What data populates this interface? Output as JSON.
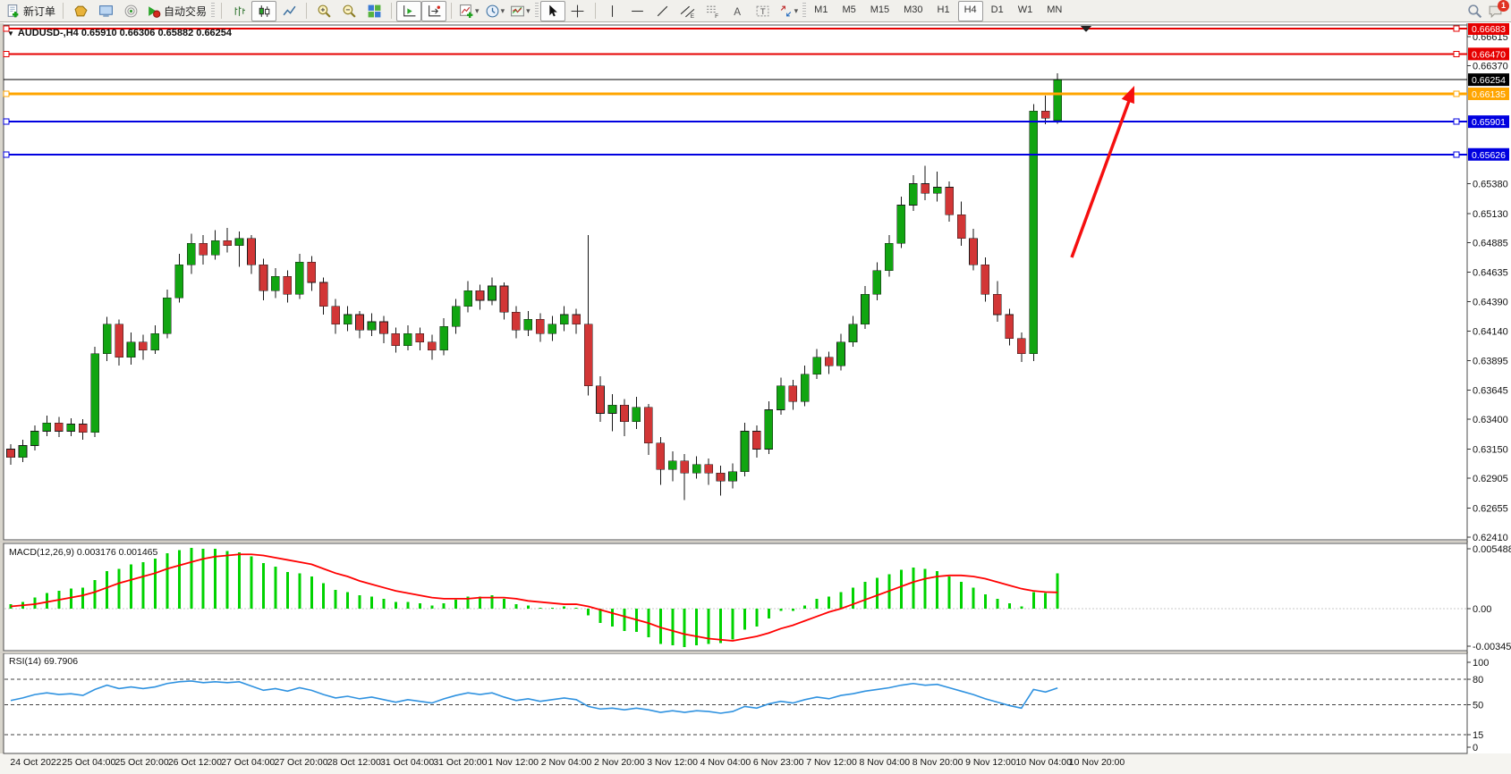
{
  "toolbar": {
    "new_order_label": "新订单",
    "auto_trading_label": "自动交易",
    "timeframes": [
      "M1",
      "M5",
      "M15",
      "M30",
      "H1",
      "H4",
      "D1",
      "W1",
      "MN"
    ],
    "active_timeframe": "H4",
    "notification_count": "1"
  },
  "chart": {
    "title": "AUDUSD-,H4  0.65910 0.66306 0.65882 0.66254",
    "symbol": "AUDUSD-",
    "period": "H4",
    "ohlc_header": {
      "open": "0.65910",
      "high": "0.66306",
      "low": "0.65882",
      "close": "0.66254"
    }
  },
  "colors": {
    "candle_up": "#11a511",
    "candle_down": "#d23636",
    "wick": "#151515",
    "line_red": "#e60000",
    "line_orange": "#ffa500",
    "line_blue": "#0000e0",
    "current_price_line": "#000000",
    "macd_hist": "#00d300",
    "macd_signal": "#ff0000",
    "rsi_line": "#2f92e0",
    "arrow": "#f50f0f"
  },
  "chart_data": {
    "type": "candlestick",
    "title": "AUDUSD-,H4",
    "ylim": [
      0.6241,
      0.66683
    ],
    "price_ticks": [
      "0.66615",
      "0.66370",
      "0.65380",
      "0.65130",
      "0.64885",
      "0.64635",
      "0.64390",
      "0.64140",
      "0.63895",
      "0.63645",
      "0.63400",
      "0.63150",
      "0.62905",
      "0.62655",
      "0.62410"
    ],
    "current_price": "0.66254",
    "hlines": [
      {
        "price": 0.66683,
        "label": "0.66683",
        "color": "#e60000",
        "width": 2
      },
      {
        "price": 0.6647,
        "label": "0.66470",
        "color": "#e60000",
        "width": 2
      },
      {
        "price": 0.66135,
        "label": "0.66135",
        "color": "#ffa500",
        "width": 3
      },
      {
        "price": 0.65901,
        "label": "0.65901",
        "color": "#0000e0",
        "width": 2
      },
      {
        "price": 0.65626,
        "label": "0.65626",
        "color": "#0000e0",
        "width": 2
      }
    ],
    "time_labels": [
      "24 Oct 2022",
      "25 Oct 04:00",
      "25 Oct 20:00",
      "26 Oct 12:00",
      "27 Oct 04:00",
      "27 Oct 20:00",
      "28 Oct 12:00",
      "31 Oct 04:00",
      "31 Oct 20:00",
      "1 Nov 12:00",
      "2 Nov 04:00",
      "2 Nov 20:00",
      "3 Nov 12:00",
      "4 Nov 04:00",
      "6 Nov 23:00",
      "7 Nov 12:00",
      "8 Nov 04:00",
      "8 Nov 20:00",
      "9 Nov 12:00",
      "10 Nov 04:00",
      "10 Nov 20:00"
    ],
    "ohlc": [
      [
        0.6315,
        0.6319,
        0.6302,
        0.6308
      ],
      [
        0.6308,
        0.6323,
        0.6304,
        0.6318
      ],
      [
        0.6318,
        0.6335,
        0.6314,
        0.633
      ],
      [
        0.633,
        0.6343,
        0.6326,
        0.6337
      ],
      [
        0.6337,
        0.6342,
        0.6325,
        0.633
      ],
      [
        0.633,
        0.6341,
        0.6326,
        0.6336
      ],
      [
        0.6336,
        0.634,
        0.6323,
        0.6329
      ],
      [
        0.6329,
        0.6401,
        0.6325,
        0.6395
      ],
      [
        0.6395,
        0.6426,
        0.6389,
        0.642
      ],
      [
        0.642,
        0.6424,
        0.6385,
        0.6392
      ],
      [
        0.6392,
        0.6413,
        0.6386,
        0.6405
      ],
      [
        0.6405,
        0.6411,
        0.639,
        0.6398
      ],
      [
        0.6398,
        0.6419,
        0.6395,
        0.6412
      ],
      [
        0.6412,
        0.6449,
        0.6408,
        0.6442
      ],
      [
        0.6442,
        0.6479,
        0.6438,
        0.647
      ],
      [
        0.647,
        0.6496,
        0.6462,
        0.6488
      ],
      [
        0.6488,
        0.6495,
        0.647,
        0.6478
      ],
      [
        0.6478,
        0.6499,
        0.6474,
        0.649
      ],
      [
        0.649,
        0.6501,
        0.648,
        0.6486
      ],
      [
        0.6486,
        0.6498,
        0.6468,
        0.6492
      ],
      [
        0.6492,
        0.6495,
        0.6462,
        0.647
      ],
      [
        0.647,
        0.6475,
        0.644,
        0.6448
      ],
      [
        0.6448,
        0.6467,
        0.6442,
        0.646
      ],
      [
        0.646,
        0.6465,
        0.6438,
        0.6445
      ],
      [
        0.6445,
        0.6479,
        0.6441,
        0.6472
      ],
      [
        0.6472,
        0.6477,
        0.6448,
        0.6455
      ],
      [
        0.6455,
        0.6459,
        0.6428,
        0.6435
      ],
      [
        0.6435,
        0.6441,
        0.6412,
        0.642
      ],
      [
        0.642,
        0.6435,
        0.6414,
        0.6428
      ],
      [
        0.6428,
        0.6431,
        0.6408,
        0.6415
      ],
      [
        0.6415,
        0.6429,
        0.641,
        0.6422
      ],
      [
        0.6422,
        0.6427,
        0.6404,
        0.6412
      ],
      [
        0.6412,
        0.6417,
        0.6396,
        0.6402
      ],
      [
        0.6402,
        0.6419,
        0.6398,
        0.6412
      ],
      [
        0.6412,
        0.6417,
        0.6398,
        0.6405
      ],
      [
        0.6405,
        0.6411,
        0.639,
        0.6398
      ],
      [
        0.6398,
        0.6425,
        0.6394,
        0.6418
      ],
      [
        0.6418,
        0.6441,
        0.6412,
        0.6435
      ],
      [
        0.6435,
        0.6456,
        0.643,
        0.6448
      ],
      [
        0.6448,
        0.6453,
        0.6432,
        0.644
      ],
      [
        0.644,
        0.6459,
        0.6436,
        0.6452
      ],
      [
        0.6452,
        0.6455,
        0.6424,
        0.643
      ],
      [
        0.643,
        0.6435,
        0.6408,
        0.6415
      ],
      [
        0.6415,
        0.6431,
        0.641,
        0.6424
      ],
      [
        0.6424,
        0.6429,
        0.6405,
        0.6412
      ],
      [
        0.6412,
        0.6427,
        0.6406,
        0.642
      ],
      [
        0.642,
        0.6435,
        0.6414,
        0.6428
      ],
      [
        0.6428,
        0.6433,
        0.6412,
        0.642
      ],
      [
        0.642,
        0.6495,
        0.636,
        0.6368
      ],
      [
        0.6368,
        0.6376,
        0.6338,
        0.6345
      ],
      [
        0.6345,
        0.6361,
        0.633,
        0.6352
      ],
      [
        0.6352,
        0.6357,
        0.6326,
        0.6338
      ],
      [
        0.6338,
        0.6359,
        0.6332,
        0.635
      ],
      [
        0.635,
        0.6353,
        0.631,
        0.632
      ],
      [
        0.632,
        0.6325,
        0.6285,
        0.6298
      ],
      [
        0.6298,
        0.6313,
        0.6288,
        0.6305
      ],
      [
        0.6305,
        0.6311,
        0.6272,
        0.6295
      ],
      [
        0.6295,
        0.6309,
        0.629,
        0.6302
      ],
      [
        0.6302,
        0.6307,
        0.6285,
        0.6295
      ],
      [
        0.6295,
        0.6301,
        0.6276,
        0.6288
      ],
      [
        0.6288,
        0.6303,
        0.6282,
        0.6296
      ],
      [
        0.6296,
        0.6337,
        0.6292,
        0.633
      ],
      [
        0.633,
        0.6335,
        0.6308,
        0.6315
      ],
      [
        0.6315,
        0.6355,
        0.6311,
        0.6348
      ],
      [
        0.6348,
        0.6375,
        0.6344,
        0.6368
      ],
      [
        0.6368,
        0.6373,
        0.6348,
        0.6355
      ],
      [
        0.6355,
        0.6385,
        0.6351,
        0.6378
      ],
      [
        0.6378,
        0.6399,
        0.6374,
        0.6392
      ],
      [
        0.6392,
        0.6397,
        0.6378,
        0.6385
      ],
      [
        0.6385,
        0.6412,
        0.6381,
        0.6405
      ],
      [
        0.6405,
        0.6427,
        0.6401,
        0.642
      ],
      [
        0.642,
        0.6452,
        0.6416,
        0.6445
      ],
      [
        0.6445,
        0.6472,
        0.644,
        0.6465
      ],
      [
        0.6465,
        0.6495,
        0.646,
        0.6488
      ],
      [
        0.6488,
        0.6527,
        0.6484,
        0.652
      ],
      [
        0.652,
        0.6545,
        0.6515,
        0.6538
      ],
      [
        0.6538,
        0.6553,
        0.6524,
        0.653
      ],
      [
        0.653,
        0.6548,
        0.6523,
        0.6535
      ],
      [
        0.6535,
        0.654,
        0.6506,
        0.6512
      ],
      [
        0.6512,
        0.6523,
        0.6486,
        0.6492
      ],
      [
        0.6492,
        0.65,
        0.6465,
        0.647
      ],
      [
        0.647,
        0.6476,
        0.6439,
        0.6445
      ],
      [
        0.6445,
        0.6456,
        0.6422,
        0.6428
      ],
      [
        0.6428,
        0.6433,
        0.6402,
        0.6408
      ],
      [
        0.6408,
        0.6413,
        0.6388,
        0.6395
      ],
      [
        0.6395,
        0.6605,
        0.6389,
        0.6599
      ],
      [
        0.6599,
        0.6612,
        0.6588,
        0.6593
      ],
      [
        0.6591,
        0.66306,
        0.65882,
        0.66254
      ]
    ],
    "indicators": [
      {
        "type": "macd",
        "label": "MACD(12,26,9) 0.003176 0.001465",
        "current_macd": 0.003176,
        "current_signal": 0.001465,
        "axis": [
          "0.005488",
          "0.00",
          "-0.003457"
        ],
        "ylim": [
          -0.003457,
          0.005488
        ],
        "histogram": [
          0.0004,
          0.0006,
          0.001,
          0.0014,
          0.0016,
          0.0018,
          0.0019,
          0.0026,
          0.0034,
          0.0036,
          0.004,
          0.0042,
          0.0045,
          0.005,
          0.0053,
          0.00549,
          0.0054,
          0.0054,
          0.0052,
          0.0051,
          0.0047,
          0.0041,
          0.0038,
          0.0033,
          0.0032,
          0.0029,
          0.0023,
          0.0017,
          0.0015,
          0.0012,
          0.0011,
          0.0009,
          0.0006,
          0.0006,
          0.0005,
          0.0003,
          0.0005,
          0.0008,
          0.0011,
          0.0011,
          0.0012,
          0.0009,
          0.0004,
          0.0003,
          0.0001,
          0.0001,
          0.0002,
          0.0001,
          -0.0006,
          -0.0013,
          -0.0016,
          -0.002,
          -0.0021,
          -0.0026,
          -0.0032,
          -0.0033,
          -0.00346,
          -0.0033,
          -0.0032,
          -0.0031,
          -0.0028,
          -0.0019,
          -0.0016,
          -0.0009,
          -0.0002,
          -0.0002,
          0.0003,
          0.0009,
          0.0011,
          0.0015,
          0.0019,
          0.0024,
          0.0028,
          0.0031,
          0.0035,
          0.0037,
          0.0036,
          0.0034,
          0.0029,
          0.0024,
          0.0019,
          0.0013,
          0.0009,
          0.0005,
          0.0002,
          0.0015,
          0.0014,
          0.003176
        ],
        "signal": [
          0.0002,
          0.0003,
          0.0004,
          0.0006,
          0.0008,
          0.001,
          0.0012,
          0.0015,
          0.0019,
          0.0023,
          0.0026,
          0.0029,
          0.0032,
          0.0036,
          0.0039,
          0.0042,
          0.0045,
          0.0047,
          0.0048,
          0.0049,
          0.0049,
          0.0048,
          0.0046,
          0.0044,
          0.0042,
          0.004,
          0.0036,
          0.0032,
          0.0029,
          0.0025,
          0.0022,
          0.0019,
          0.0016,
          0.0014,
          0.0012,
          0.001,
          0.0009,
          0.0009,
          0.0009,
          0.001,
          0.001,
          0.001,
          0.0009,
          0.0007,
          0.0006,
          0.0005,
          0.0004,
          0.0004,
          0.0002,
          -0.0001,
          -0.0004,
          -0.0007,
          -0.001,
          -0.0013,
          -0.0017,
          -0.002,
          -0.0023,
          -0.0025,
          -0.0027,
          -0.0028,
          -0.0029,
          -0.0027,
          -0.0025,
          -0.0022,
          -0.0018,
          -0.0015,
          -0.0011,
          -0.0007,
          -0.0003,
          0.0,
          0.0004,
          0.0008,
          0.0012,
          0.0016,
          0.002,
          0.0024,
          0.0027,
          0.0029,
          0.003,
          0.003,
          0.0029,
          0.0027,
          0.0024,
          0.0021,
          0.0018,
          0.0016,
          0.0015,
          0.001465
        ]
      },
      {
        "type": "rsi",
        "label": "RSI(14) 69.7906",
        "current": 69.7906,
        "axis": [
          "100",
          "80",
          "50",
          "15",
          "0"
        ],
        "levels": [
          80,
          50,
          15
        ],
        "ylim": [
          0,
          100
        ],
        "values": [
          55,
          58,
          62,
          64,
          62,
          63,
          61,
          68,
          73,
          69,
          71,
          69,
          71,
          75,
          77,
          78,
          76,
          77,
          76,
          77,
          72,
          67,
          69,
          66,
          70,
          67,
          62,
          58,
          60,
          57,
          59,
          56,
          53,
          56,
          54,
          52,
          57,
          61,
          64,
          62,
          64,
          59,
          55,
          57,
          54,
          56,
          58,
          56,
          48,
          45,
          46,
          44,
          46,
          44,
          41,
          43,
          41,
          43,
          42,
          40,
          42,
          48,
          46,
          51,
          54,
          52,
          56,
          59,
          57,
          61,
          63,
          66,
          68,
          70,
          73,
          75,
          73,
          74,
          70,
          66,
          62,
          57,
          53,
          49,
          46,
          68,
          65,
          69.79
        ]
      }
    ],
    "arrow_annotation": {
      "description": "red up arrow pointing to orange resistance line",
      "color": "#f50f0f"
    }
  }
}
